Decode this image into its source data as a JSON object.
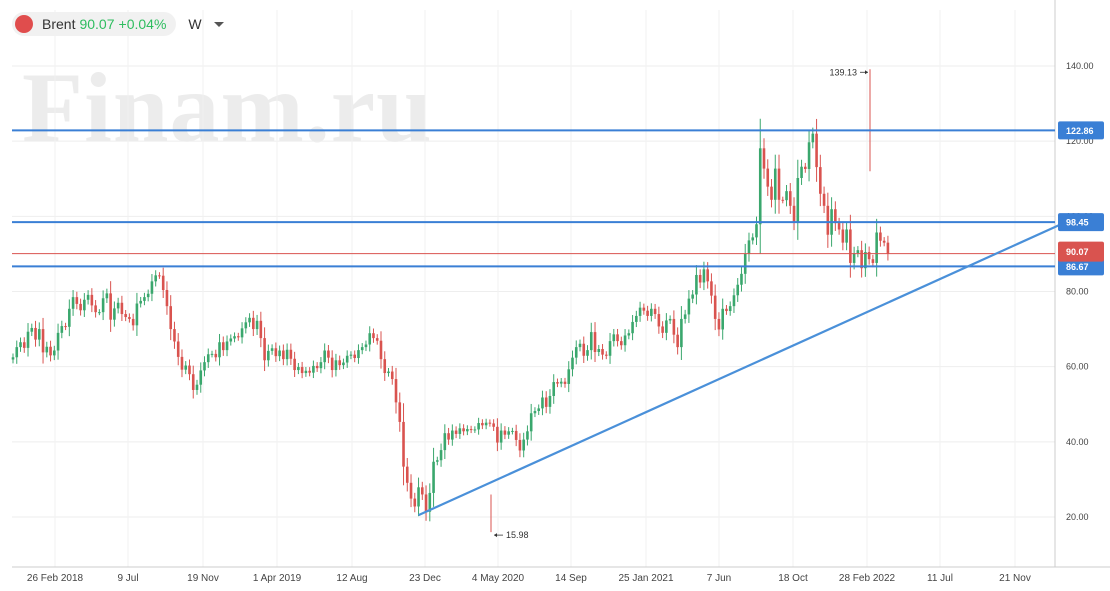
{
  "header": {
    "symbol": "Brent",
    "price": "90.07",
    "change": "+0.04%",
    "interval": "W"
  },
  "watermark": "Finam.ru",
  "colors": {
    "up": "#3aa76d",
    "down": "#d9534f",
    "level_line": "#3a7fd5",
    "trend_line": "#4a90d9",
    "current_price": "#d9534f"
  },
  "chart_data": {
    "type": "candlestick",
    "x_ticks": [
      "26 Feb 2018",
      "9 Jul",
      "19 Nov",
      "1 Apr 2019",
      "12 Aug",
      "23 Dec",
      "4 May 2020",
      "14 Sep",
      "25 Jan 2021",
      "7 Jun",
      "18 Oct",
      "28 Feb 2022",
      "11 Jul",
      "21 Nov"
    ],
    "y_ticks": [
      "20.00",
      "40.00",
      "60.00",
      "80.00",
      "100.00",
      "120.00",
      "140.00"
    ],
    "ylim": [
      6,
      152
    ],
    "grid": true,
    "closes": [
      62.5,
      65.2,
      66.5,
      65.0,
      69.3,
      70.3,
      67.2,
      70.0,
      63.8,
      65.3,
      63.0,
      64.3,
      69.0,
      70.8,
      70.6,
      75.4,
      78.5,
      76.7,
      75.0,
      77.8,
      79.1,
      76.3,
      74.5,
      74.5,
      78.2,
      79.5,
      72.5,
      75.5,
      77.0,
      74.0,
      73.2,
      72.7,
      71.0,
      76.8,
      77.5,
      78.5,
      79.4,
      82.7,
      84.3,
      84.2,
      80.4,
      76.1,
      70.0,
      66.7,
      62.6,
      59.2,
      60.3,
      58.0,
      53.8,
      55.2,
      59.0,
      61.2,
      63.3,
      63.4,
      62.5,
      66.5,
      64.4,
      66.7,
      67.5,
      68.1,
      67.8,
      70.2,
      71.8,
      73.0,
      70.0,
      72.2,
      67.6,
      61.7,
      64.2,
      64.9,
      62.8,
      64.3,
      62.0,
      64.5,
      62.1,
      59.1,
      59.9,
      58.3,
      58.9,
      58.4,
      60.2,
      59.6,
      61.2,
      64.3,
      62.4,
      59.1,
      61.7,
      60.4,
      61.1,
      62.9,
      63.2,
      62.3,
      64.4,
      65.2,
      65.9,
      68.9,
      67.6,
      66.9,
      62.0,
      58.3,
      58.7,
      56.7,
      50.5,
      45.3,
      33.4,
      29.1,
      24.9,
      22.8,
      27.9,
      26.0,
      21.4,
      26.4,
      34.7,
      35.1,
      37.8,
      42.3,
      40.6,
      43.0,
      42.1,
      43.6,
      42.8,
      43.4,
      43.2,
      43.3,
      45.0,
      44.4,
      45.1,
      44.9,
      44.0,
      39.8,
      43.0,
      41.9,
      42.8,
      42.9,
      40.5,
      37.7,
      40.6,
      42.8,
      47.6,
      48.2,
      48.9,
      51.8,
      49.3,
      52.2,
      55.9,
      55.5,
      56.0,
      55.4,
      59.3,
      62.4,
      65.2,
      66.1,
      62.9,
      64.4,
      69.2,
      63.9,
      64.7,
      63.2,
      62.9,
      66.8,
      68.6,
      66.8,
      65.7,
      68.3,
      68.9,
      71.9,
      73.5,
      75.7,
      74.9,
      73.5,
      75.4,
      74.0,
      70.7,
      69.0,
      72.3,
      72.7,
      68.5,
      65.2,
      72.7,
      73.9,
      78.1,
      79.2,
      84.4,
      82.4,
      85.9,
      82.7,
      78.9,
      72.7,
      69.9,
      75.4,
      74.8,
      76.1,
      79.0,
      81.8,
      84.7,
      90.0,
      93.6,
      94.4,
      97.9,
      118.1,
      112.7,
      107.9,
      104.4,
      112.7,
      104.4,
      104.3,
      106.7,
      102.8,
      98.6,
      110.2,
      113.2,
      112.6,
      119.7,
      122.0,
      113.1,
      106.0,
      102.8,
      95.1,
      101.9,
      98.2,
      96.5,
      93.0,
      96.5,
      87.6,
      90.2,
      91.0,
      86.2,
      90.5,
      88.6,
      87.6,
      95.7,
      93.5,
      93.0,
      90.07
    ],
    "horizontal_levels": [
      122.86,
      98.45,
      86.67
    ],
    "current_price": 90.07,
    "trendline": {
      "from": {
        "index": 108,
        "value": 20.5
      },
      "to": {
        "index": 269,
        "value": 98.0
      }
    },
    "annotations": [
      {
        "label": "139.13",
        "value": 139.13,
        "kind": "high"
      },
      {
        "label": "15.98",
        "value": 15.98,
        "kind": "low"
      }
    ],
    "price_badges": [
      "122.86",
      "98.45",
      "90.07",
      "86.67"
    ]
  }
}
